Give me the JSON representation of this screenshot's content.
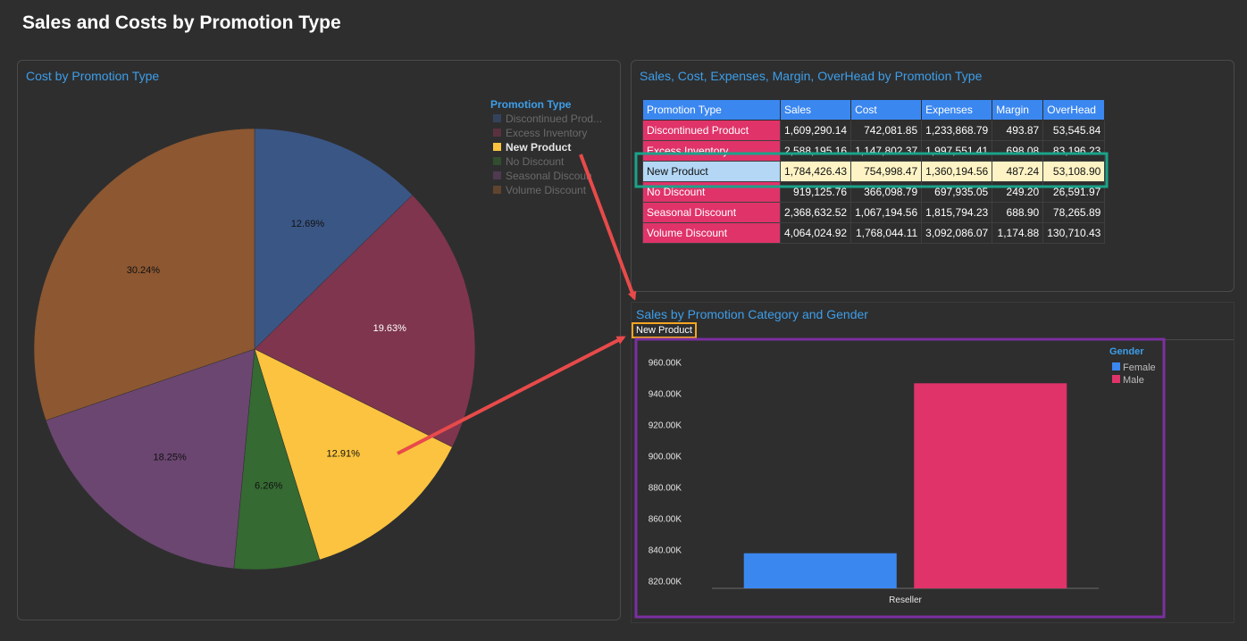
{
  "page_title": "Sales and Costs by Promotion Type",
  "colors": {
    "discontinued": "#3a5685",
    "excess": "#7f354e",
    "new_product": "#fbc33f",
    "no_discount": "#356a32",
    "seasonal": "#6b4671",
    "volume": "#8c5731",
    "female": "#3b87f0",
    "male": "#e0336a",
    "highlight_green": "#1aa38a",
    "highlight_orange": "#f5a623",
    "highlight_purple": "#7b2fa0",
    "arrow": "#e84a4a"
  },
  "pie_panel": {
    "title": "Cost by Promotion Type",
    "legend_title": "Promotion Type",
    "legend": [
      {
        "label": "Discontinued Prod...",
        "color": "#3a5685",
        "dim": true
      },
      {
        "label": "Excess Inventory",
        "color": "#7f354e",
        "dim": true
      },
      {
        "label": "New Product",
        "color": "#fbc33f",
        "dim": false
      },
      {
        "label": "No Discount",
        "color": "#356a32",
        "dim": true
      },
      {
        "label": "Seasonal Discoun",
        "color": "#6b4671",
        "dim": true
      },
      {
        "label": "Volume Discount",
        "color": "#8c5731",
        "dim": true
      }
    ]
  },
  "table_panel": {
    "title": "Sales, Cost, Expenses, Margin, OverHead by Promotion Type",
    "headers": [
      "Promotion Type",
      "Sales",
      "Cost",
      "Expenses",
      "Margin",
      "OverHead"
    ],
    "rows": [
      {
        "name": "Discontinued Product",
        "values": [
          "1,609,290.14",
          "742,081.85",
          "1,233,868.79",
          "493.87",
          "53,545.84"
        ],
        "selected": false
      },
      {
        "name": "Excess Inventory",
        "values": [
          "2,588,195.16",
          "1,147,802.37",
          "1,997,551.41",
          "698.08",
          "83,196.23"
        ],
        "selected": false
      },
      {
        "name": "New Product",
        "values": [
          "1,784,426.43",
          "754,998.47",
          "1,360,194.56",
          "487.24",
          "53,108.90"
        ],
        "selected": true
      },
      {
        "name": "No Discount",
        "values": [
          "919,125.76",
          "366,098.79",
          "697,935.05",
          "249.20",
          "26,591.97"
        ],
        "selected": false
      },
      {
        "name": "Seasonal Discount",
        "values": [
          "2,368,632.52",
          "1,067,194.56",
          "1,815,794.23",
          "688.90",
          "78,265.89"
        ],
        "selected": false
      },
      {
        "name": "Volume Discount",
        "values": [
          "4,064,024.92",
          "1,768,044.11",
          "3,092,086.07",
          "1,174.88",
          "130,710.43"
        ],
        "selected": false
      }
    ]
  },
  "bar_panel": {
    "title": "Sales by Promotion Category and Gender",
    "filter_chip": "New Product",
    "legend_title": "Gender"
  },
  "chart_data": [
    {
      "type": "pie",
      "title": "Cost by Promotion Type",
      "legend_title": "Promotion Type",
      "slices": [
        {
          "label": "Discontinued Product",
          "value": 12.69,
          "pct_label": "12.69%"
        },
        {
          "label": "Excess Inventory",
          "value": 19.63,
          "pct_label": "19.63%"
        },
        {
          "label": "New Product",
          "value": 12.91,
          "pct_label": "12.91%"
        },
        {
          "label": "No Discount",
          "value": 6.26,
          "pct_label": "6.26%"
        },
        {
          "label": "Seasonal Discount",
          "value": 18.25,
          "pct_label": "18.25%"
        },
        {
          "label": "Volume Discount",
          "value": 30.24,
          "pct_label": "30.24%"
        }
      ],
      "start_angle_deg": 0,
      "direction": "clockwise"
    },
    {
      "type": "bar",
      "title": "Sales by Promotion Category and Gender",
      "filter": "New Product",
      "categories": [
        "Reseller"
      ],
      "series": [
        {
          "name": "Female",
          "values": [
            837500
          ]
        },
        {
          "name": "Male",
          "values": [
            946500
          ]
        }
      ],
      "ylim": [
        815000,
        965000
      ],
      "yticks": [
        820000,
        840000,
        860000,
        880000,
        900000,
        920000,
        940000,
        960000
      ],
      "ytick_labels": [
        "820.00K",
        "840.00K",
        "860.00K",
        "880.00K",
        "900.00K",
        "920.00K",
        "940.00K",
        "960.00K"
      ],
      "legend_title": "Gender",
      "legend_position": "top-right"
    }
  ]
}
